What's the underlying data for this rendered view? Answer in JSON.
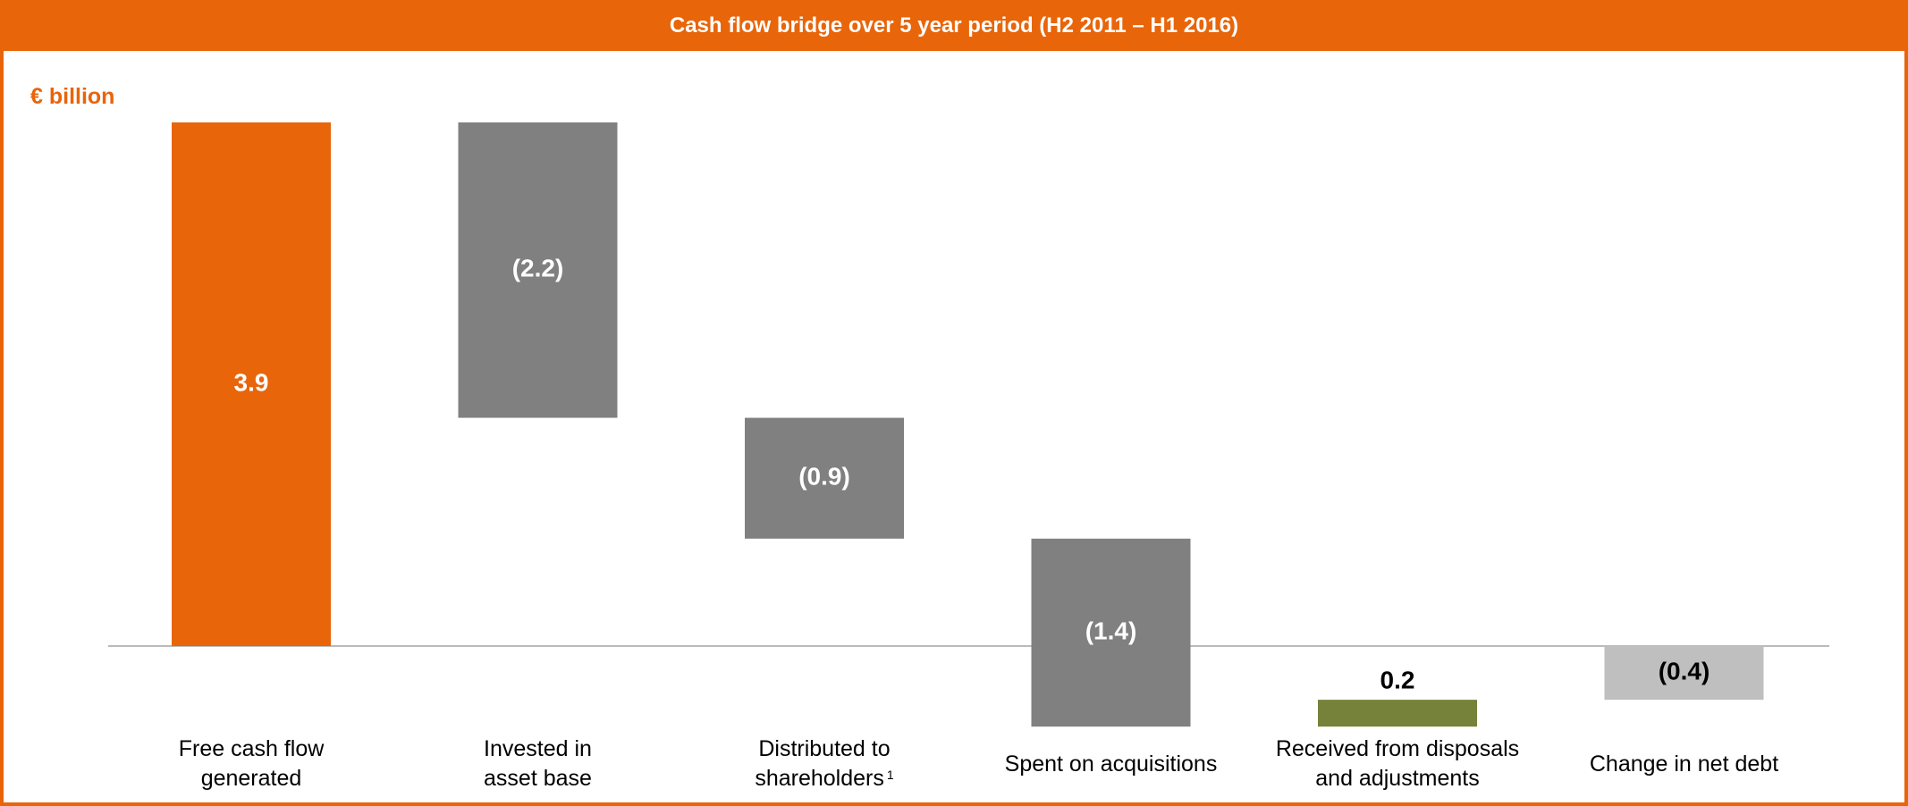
{
  "chart_data": {
    "type": "waterfall",
    "title": "Cash flow bridge over 5 year period (H2 2011 – H1 2016)",
    "unit_label": "€ billion",
    "categories": [
      "Free cash flow\ngenerated",
      "Invested in\nasset base",
      "Distributed to\nshareholders",
      "Spent on acquisitions",
      "Received from disposals\nand adjustments",
      "Change in net debt"
    ],
    "footnote_marker": "1",
    "values": [
      3.9,
      -2.2,
      -0.9,
      -1.4,
      0.2,
      -0.4
    ],
    "value_labels": [
      "3.9",
      "(2.2)",
      "(0.9)",
      "(1.4)",
      "0.2",
      "(0.4)"
    ],
    "colors": [
      "#E8650A",
      "#808080",
      "#808080",
      "#808080",
      "#76813A",
      "#BFBFBF"
    ],
    "label_colors": [
      "#ffffff",
      "#ffffff",
      "#ffffff",
      "#ffffff",
      "#000000",
      "#000000"
    ]
  }
}
